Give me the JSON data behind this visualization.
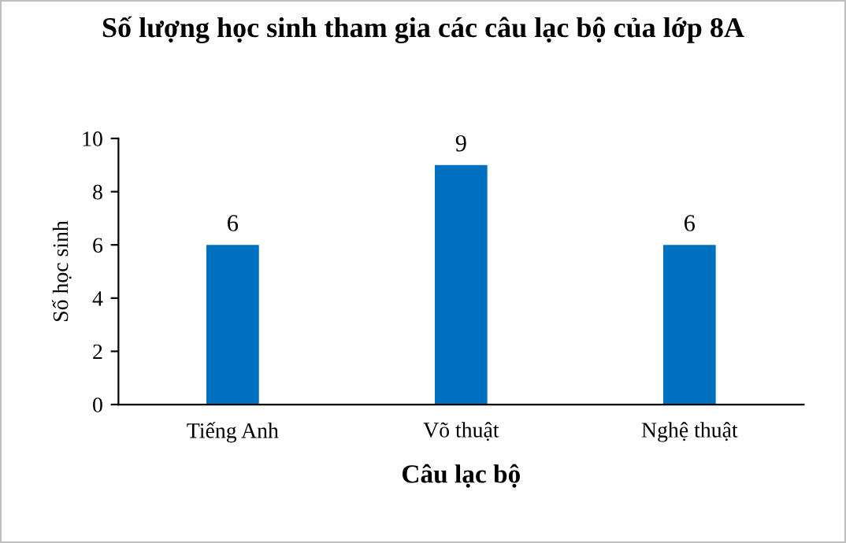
{
  "chart_data": {
    "type": "bar",
    "title": "Số lượng học sinh tham gia các câu lạc bộ của lớp 8A",
    "xlabel": "Câu lạc bộ",
    "ylabel": "Số học sinh",
    "categories": [
      "Tiếng Anh",
      "Võ thuật",
      "Nghệ thuật"
    ],
    "values": [
      6,
      9,
      6
    ],
    "color": "#0070c0",
    "ylim": [
      0,
      10
    ],
    "yticks": [
      0,
      2,
      4,
      6,
      8,
      10
    ],
    "grid": false,
    "data_labels": true
  }
}
